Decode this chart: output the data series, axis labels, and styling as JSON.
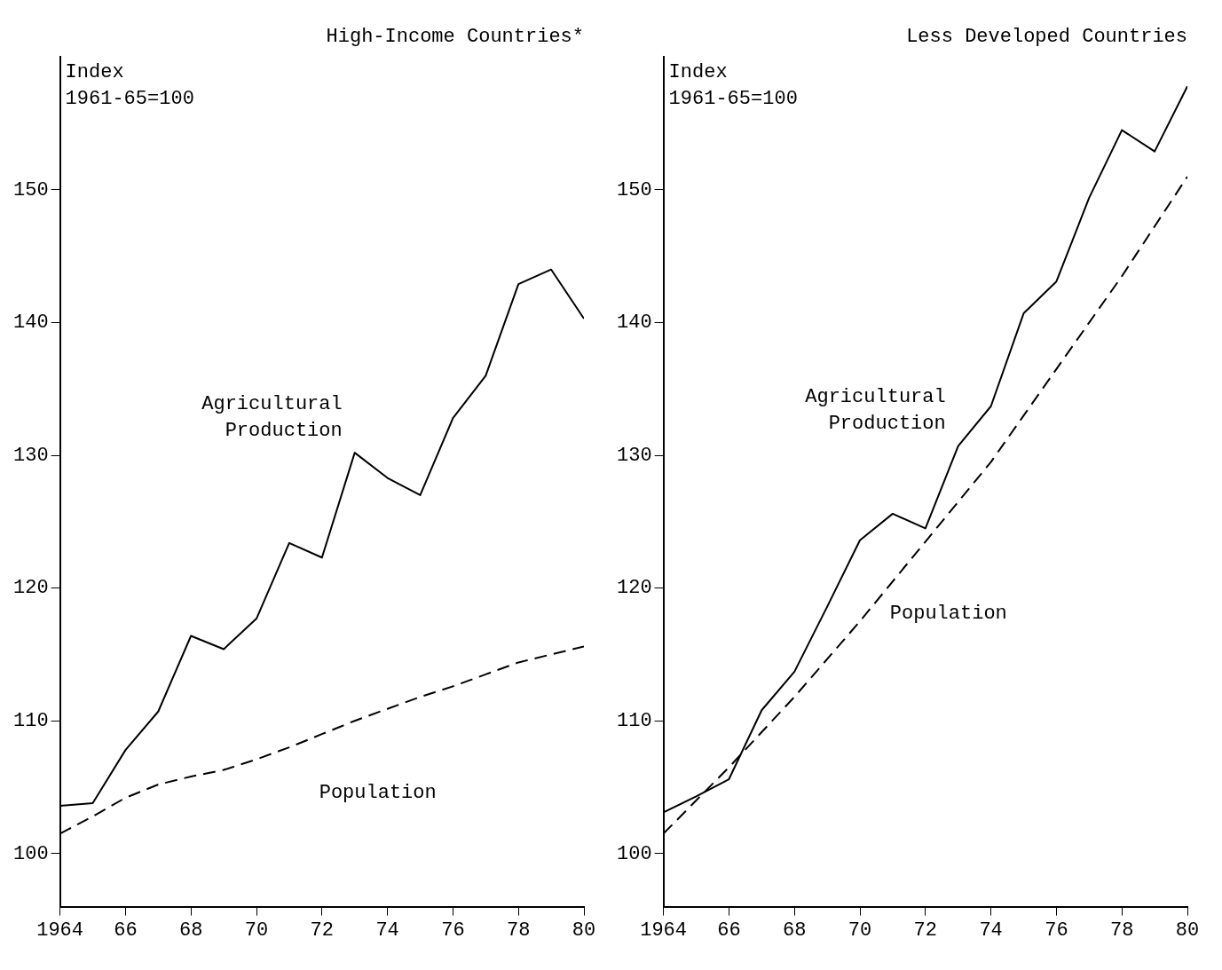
{
  "chart_data": [
    {
      "type": "line",
      "title": "High-Income Countries*",
      "ylabel": "Index 1961-65=100",
      "x": [
        1964,
        1965,
        1966,
        1967,
        1968,
        1969,
        1970,
        1971,
        1972,
        1973,
        1974,
        1975,
        1976,
        1977,
        1978,
        1979,
        1980
      ],
      "series": [
        {
          "name": "Agricultural Production",
          "color": "#000000",
          "line_style": "solid",
          "values": [
            103.6,
            103.8,
            107.8,
            110.7,
            116.4,
            115.4,
            117.7,
            123.4,
            122.3,
            130.2,
            128.3,
            127.0,
            132.8,
            136.0,
            142.9,
            144.0,
            140.3
          ]
        },
        {
          "name": "Population",
          "color": "#000000",
          "line_style": "dashed",
          "values": [
            101.5,
            102.8,
            104.2,
            105.2,
            105.8,
            106.3,
            107.1,
            108.0,
            109.0,
            110.0,
            110.9,
            111.8,
            112.6,
            113.5,
            114.4,
            115.0,
            115.6
          ]
        }
      ],
      "xlim": [
        1964,
        1980
      ],
      "xticks": [
        1964,
        {
          "value": 1966,
          "label": "66"
        },
        {
          "value": 1968,
          "label": "68"
        },
        {
          "value": 1970,
          "label": "70"
        },
        {
          "value": 1972,
          "label": "72"
        },
        {
          "value": 1974,
          "label": "74"
        },
        {
          "value": 1976,
          "label": "76"
        },
        {
          "value": 1978,
          "label": "78"
        },
        {
          "value": 1980,
          "label": "80"
        }
      ],
      "ylim": [
        96,
        160
      ],
      "yticks": [
        100,
        110,
        120,
        130,
        140,
        150
      ],
      "grid": false,
      "legend": false,
      "marker": "none"
    },
    {
      "type": "line",
      "title": "Less Developed Countries",
      "ylabel": "Index 1961-65=100",
      "series": [
        {
          "name": "Agricultural Production",
          "color": "#000000",
          "line_style": "solid",
          "x": [
            1964,
            1965,
            1966,
            1967,
            1968,
            1969,
            1970,
            1971,
            1972,
            1973,
            1974,
            1975,
            1976,
            1977,
            1978,
            1979,
            1980
          ],
          "values": [
            103.1,
            104.3,
            105.6,
            110.8,
            113.7,
            118.6,
            123.6,
            125.6,
            124.5,
            130.7,
            133.7,
            140.7,
            143.1,
            149.4,
            154.5,
            152.9,
            157.8
          ]
        },
        {
          "name": "Population",
          "color": "#000000",
          "line_style": "dashed",
          "x": [
            1964,
            1966,
            1968,
            1970,
            1972,
            1974,
            1976,
            1978,
            1980
          ],
          "values": [
            101.5,
            106.5,
            111.8,
            117.5,
            123.5,
            129.5,
            136.5,
            143.5,
            151.0
          ]
        }
      ],
      "xlim": [
        1964,
        1980
      ],
      "xticks": [
        1964,
        {
          "value": 1966,
          "label": "66"
        },
        {
          "value": 1968,
          "label": "68"
        },
        {
          "value": 1970,
          "label": "70"
        },
        {
          "value": 1972,
          "label": "72"
        },
        {
          "value": 1974,
          "label": "74"
        },
        {
          "value": 1976,
          "label": "76"
        },
        {
          "value": 1978,
          "label": "78"
        },
        {
          "value": 1980,
          "label": "80"
        }
      ],
      "ylim": [
        96,
        160
      ],
      "yticks": [
        100,
        110,
        120,
        130,
        140,
        150
      ],
      "grid": false,
      "legend": false,
      "marker": "none"
    }
  ]
}
